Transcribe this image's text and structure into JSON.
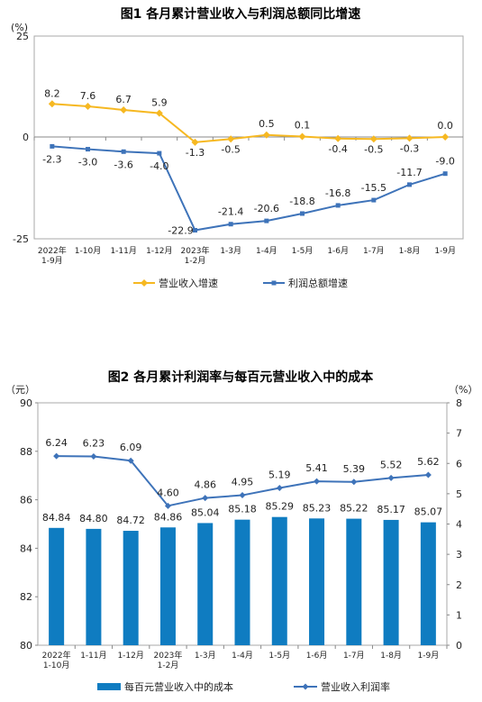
{
  "colors": {
    "yellow": "#F6B821",
    "blue": "#3E73B9",
    "bar": "#0F7CC1",
    "axis": "#888888",
    "frame": "#AAAAAA"
  },
  "chart_data": [
    {
      "type": "line",
      "title": "图1  各月累计营业收入与利润总额同比增速",
      "yunit": "(%)",
      "ylim": [
        -25,
        25
      ],
      "yticks": [
        "25",
        "0",
        "-25"
      ],
      "categories": [
        [
          "2022年",
          "1-9月"
        ],
        [
          "1-10月"
        ],
        [
          "1-11月"
        ],
        [
          "1-12月"
        ],
        [
          "2023年",
          "1-2月"
        ],
        [
          "1-3月"
        ],
        [
          "1-4月"
        ],
        [
          "1-5月"
        ],
        [
          "1-6月"
        ],
        [
          "1-7月"
        ],
        [
          "1-8月"
        ],
        [
          "1-9月"
        ]
      ],
      "series": [
        {
          "name": "营业收入增速",
          "color": "yellow",
          "values": [
            8.2,
            7.6,
            6.7,
            5.9,
            -1.3,
            -0.5,
            0.5,
            0.1,
            -0.4,
            -0.5,
            -0.3,
            0.0
          ],
          "labels": [
            "8.2",
            "7.6",
            "6.7",
            "5.9",
            "-1.3",
            "-0.5",
            "0.5",
            "0.1",
            "-0.4",
            "-0.5",
            "-0.3",
            "0.0"
          ]
        },
        {
          "name": "利润总额增速",
          "color": "blue",
          "values": [
            -2.3,
            -3.0,
            -3.6,
            -4.0,
            -22.9,
            -21.4,
            -20.6,
            -18.8,
            -16.8,
            -15.5,
            -11.7,
            -9.0
          ],
          "labels": [
            "-2.3",
            "-3.0",
            "-3.6",
            "-4.0",
            "-22.9",
            "-21.4",
            "-20.6",
            "-18.8",
            "-16.8",
            "-15.5",
            "-11.7",
            "-9.0"
          ]
        }
      ],
      "legend_position": "bottom",
      "grid": false
    },
    {
      "type": "bar",
      "title": "图2  各月累计利润率与每百元营业收入中的成本",
      "y_left_unit": "（元）",
      "y_right_unit": "（%）",
      "ylim_left": [
        80,
        90
      ],
      "ylim_right": [
        0,
        8
      ],
      "yticks_left": [
        "90",
        "88",
        "86",
        "84",
        "82",
        "80"
      ],
      "yticks_right": [
        "8",
        "7",
        "6",
        "5",
        "4",
        "3",
        "2",
        "1",
        "0"
      ],
      "categories": [
        [
          "2022年",
          "1-10月"
        ],
        [
          "1-11月"
        ],
        [
          "1-12月"
        ],
        [
          "2023年",
          "1-2月"
        ],
        [
          "1-3月"
        ],
        [
          "1-4月"
        ],
        [
          "1-5月"
        ],
        [
          "1-6月"
        ],
        [
          "1-7月"
        ],
        [
          "1-8月"
        ],
        [
          "1-9月"
        ]
      ],
      "bar_series": {
        "name": "每百元营业收入中的成本",
        "color": "bar",
        "axis": "left",
        "values": [
          84.84,
          84.8,
          84.72,
          84.86,
          85.04,
          85.18,
          85.29,
          85.23,
          85.22,
          85.17,
          85.07
        ],
        "labels": [
          "84.84",
          "84.80",
          "84.72",
          "84.86",
          "85.04",
          "85.18",
          "85.29",
          "85.23",
          "85.22",
          "85.17",
          "85.07"
        ]
      },
      "line_series": {
        "name": "营业收入利润率",
        "color": "blue",
        "axis": "right",
        "values": [
          6.24,
          6.23,
          6.09,
          4.6,
          4.86,
          4.95,
          5.19,
          5.41,
          5.39,
          5.52,
          5.62
        ],
        "labels": [
          "6.24",
          "6.23",
          "6.09",
          "4.60",
          "4.86",
          "4.95",
          "5.19",
          "5.41",
          "5.39",
          "5.52",
          "5.62"
        ]
      },
      "legend_position": "bottom",
      "grid": false
    }
  ]
}
